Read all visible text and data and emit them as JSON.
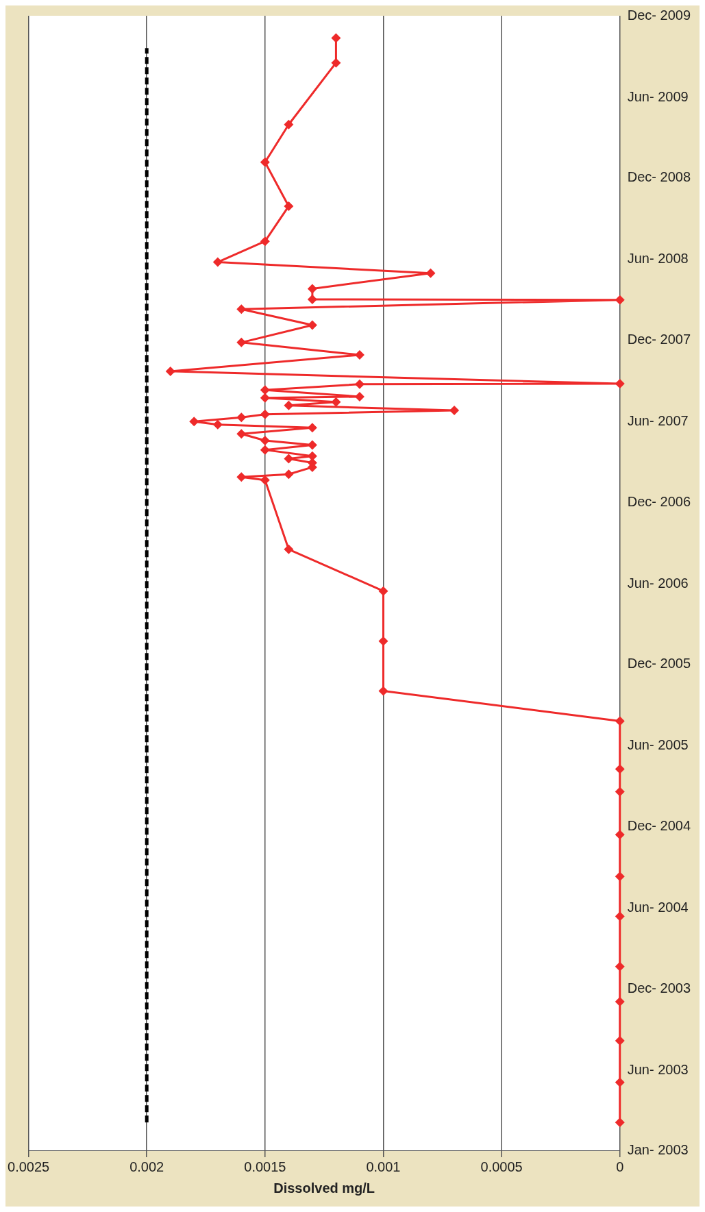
{
  "chart_data": {
    "type": "line",
    "orientation": "horizontal",
    "xlabel": "Dissolved mg/L",
    "xlim": [
      0.0025,
      0
    ],
    "xticks": [
      0.0025,
      0.002,
      0.0015,
      0.001,
      0.0005,
      0
    ],
    "ylim": [
      "2003-01-01",
      "2009-12-31"
    ],
    "yticks": [
      {
        "value": "2003-01-01",
        "label": "Jan- 2003"
      },
      {
        "value": "2003-06-30",
        "label": "Jun- 2003"
      },
      {
        "value": "2003-12-31",
        "label": "Dec- 2003"
      },
      {
        "value": "2004-06-30",
        "label": "Jun- 2004"
      },
      {
        "value": "2004-12-31",
        "label": "Dec- 2004"
      },
      {
        "value": "2005-06-30",
        "label": "Jun- 2005"
      },
      {
        "value": "2005-12-31",
        "label": "Dec- 2005"
      },
      {
        "value": "2006-06-30",
        "label": "Jun- 2006"
      },
      {
        "value": "2006-12-31",
        "label": "Dec- 2006"
      },
      {
        "value": "2007-06-30",
        "label": "Jun- 2007"
      },
      {
        "value": "2007-12-31",
        "label": "Dec- 2007"
      },
      {
        "value": "2008-06-30",
        "label": "Jun- 2008"
      },
      {
        "value": "2008-12-31",
        "label": "Dec- 2008"
      },
      {
        "value": "2009-06-30",
        "label": "Jun- 2009"
      },
      {
        "value": "2009-12-31",
        "label": "Dec- 2009"
      }
    ],
    "grid": "x",
    "series": [
      {
        "color": "#000000",
        "marker": "none",
        "line_style": "dashed",
        "x": [
          "2003-03-05",
          "2009-10-19"
        ],
        "values": [
          0.002,
          0.002
        ]
      },
      {
        "color": "#ee2a2a",
        "marker": "diamond",
        "line_style": "solid",
        "x": [
          "2003-03-05",
          "2003-06-03",
          "2003-09-05",
          "2003-12-02",
          "2004-02-19",
          "2004-06-11",
          "2004-09-09",
          "2004-12-12",
          "2005-03-19",
          "2005-05-09",
          "2005-08-25",
          "2005-11-01",
          "2006-02-21",
          "2006-06-14",
          "2006-09-16",
          "2007-02-19",
          "2007-02-26",
          "2007-03-04",
          "2007-03-20",
          "2007-03-30",
          "2007-04-08",
          "2007-04-14",
          "2007-04-28",
          "2007-05-09",
          "2007-05-19",
          "2007-06-03",
          "2007-06-17",
          "2007-06-24",
          "2007-07-01",
          "2007-07-10",
          "2007-07-17",
          "2007-07-26",
          "2007-08-06",
          "2007-08-14",
          "2007-08-23",
          "2007-08-26",
          "2007-09-10",
          "2007-09-23",
          "2007-09-24",
          "2007-10-22",
          "2007-11-28",
          "2007-12-26",
          "2008-02-03",
          "2008-03-10",
          "2008-03-31",
          "2008-04-01",
          "2008-04-25",
          "2008-05-30",
          "2008-06-24",
          "2008-08-10",
          "2008-10-28",
          "2009-02-04",
          "2009-04-30",
          "2009-09-16",
          "2009-11-11"
        ],
        "values": [
          0,
          0,
          0,
          0,
          0,
          0,
          0,
          0,
          0,
          0,
          0,
          0.001,
          0.001,
          0.001,
          0.0014,
          0.0015,
          0.0016,
          0.0014,
          0.0013,
          0.0013,
          0.0014,
          0.0013,
          0.0015,
          0.0013,
          0.0015,
          0.0016,
          0.0013,
          0.0017,
          0.0018,
          0.0016,
          0.0015,
          0.0007,
          0.0014,
          0.0012,
          0.0015,
          0.0011,
          0.0015,
          0.0011,
          0,
          0.0019,
          0.0011,
          0.0016,
          0.0013,
          0.0016,
          0,
          0.0013,
          0.0013,
          0.0008,
          0.0017,
          0.0015,
          0.0014,
          0.0015,
          0.0014,
          0.0012,
          0.0012
        ]
      }
    ]
  }
}
